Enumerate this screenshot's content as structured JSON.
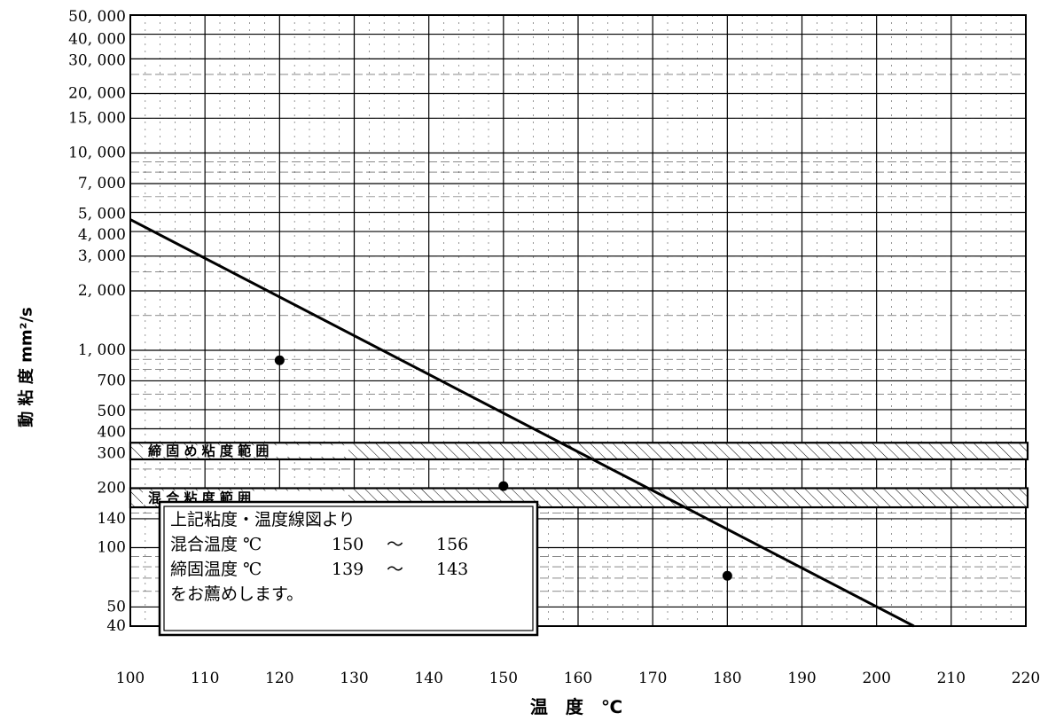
{
  "chart_data": {
    "type": "line",
    "title": "",
    "xlabel": "温　度　℃",
    "ylabel": "動 粘 度 mm²/s",
    "x_scale": "linear",
    "y_scale": "log",
    "xlim": [
      100,
      220
    ],
    "ylim": [
      40,
      50000
    ],
    "grid": true,
    "x_ticks": [
      {
        "v": 100,
        "label": "100"
      },
      {
        "v": 110,
        "label": "110"
      },
      {
        "v": 120,
        "label": "120"
      },
      {
        "v": 130,
        "label": "130"
      },
      {
        "v": 140,
        "label": "140"
      },
      {
        "v": 150,
        "label": "150"
      },
      {
        "v": 160,
        "label": "160"
      },
      {
        "v": 170,
        "label": "170"
      },
      {
        "v": 180,
        "label": "180"
      },
      {
        "v": 190,
        "label": "190"
      },
      {
        "v": 200,
        "label": "200"
      },
      {
        "v": 210,
        "label": "210"
      },
      {
        "v": 220,
        "label": "220"
      }
    ],
    "y_ticks": [
      {
        "v": 50000,
        "label": "50, 000"
      },
      {
        "v": 40000,
        "label": "40, 000"
      },
      {
        "v": 30000,
        "label": "30, 000"
      },
      {
        "v": 20000,
        "label": "20, 000"
      },
      {
        "v": 15000,
        "label": "15, 000"
      },
      {
        "v": 10000,
        "label": "10, 000"
      },
      {
        "v": 7000,
        "label": "7, 000"
      },
      {
        "v": 5000,
        "label": "5, 000"
      },
      {
        "v": 4000,
        "label": "4, 000"
      },
      {
        "v": 3000,
        "label": "3, 000"
      },
      {
        "v": 2000,
        "label": "2, 000"
      },
      {
        "v": 1000,
        "label": "1, 000"
      },
      {
        "v": 700,
        "label": "700"
      },
      {
        "v": 500,
        "label": "500"
      },
      {
        "v": 400,
        "label": "400"
      },
      {
        "v": 300,
        "label": "300"
      },
      {
        "v": 200,
        "label": "200"
      },
      {
        "v": 140,
        "label": "140"
      },
      {
        "v": 100,
        "label": "100"
      },
      {
        "v": 50,
        "label": "50"
      },
      {
        "v": 40,
        "label": "40"
      }
    ],
    "series": [
      {
        "line": {
          "x": [
            100,
            205
          ],
          "y": [
            4600,
            40
          ]
        },
        "points": [
          {
            "x": 120,
            "y": 890
          },
          {
            "x": 150,
            "y": 205
          },
          {
            "x": 180,
            "y": 72
          }
        ]
      }
    ],
    "bands": [
      {
        "label": "締 固 め 粘 度 範 囲",
        "ymin": 280,
        "ymax": 340
      },
      {
        "label": "混 合 粘 度 範 囲",
        "ymin": 160,
        "ymax": 200
      }
    ],
    "annotation": {
      "lines": [
        {
          "text": "上記粘度・温度線図より"
        },
        {
          "text": "混合温度 ℃",
          "from": "150",
          "sep": "～",
          "to": "156"
        },
        {
          "text": "締固温度 ℃",
          "from": "139",
          "sep": "～",
          "to": "143"
        },
        {
          "text": "をお薦めします。"
        }
      ]
    },
    "colors": {
      "line": "#000000",
      "grid": "#000000",
      "background": "#ffffff"
    }
  }
}
